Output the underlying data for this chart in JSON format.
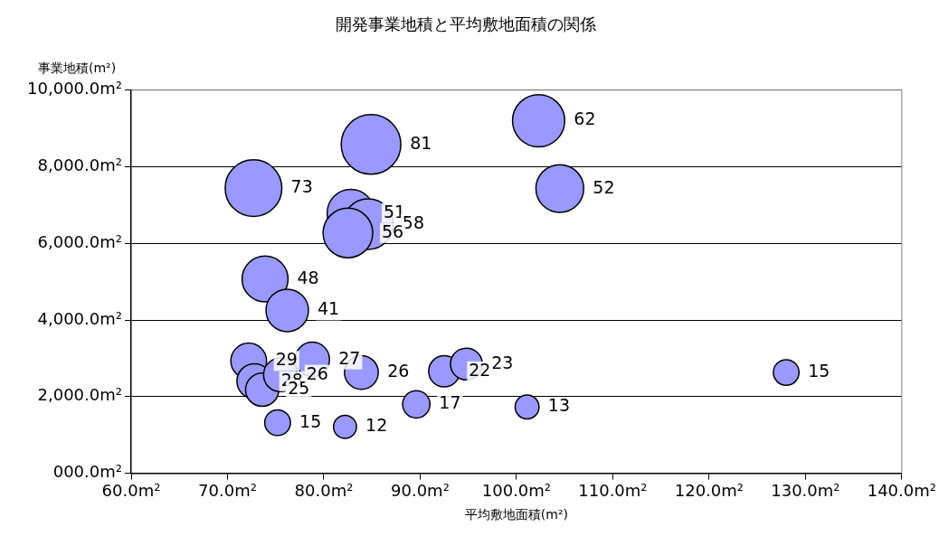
{
  "chart_data": {
    "type": "bubble",
    "title": "開発事業地積と平均敷地面積の関係",
    "xlabel": "平均敷地面積(m²)",
    "ylabel": "事業地積(m²)",
    "x": [
      102.3,
      84.9,
      104.5,
      72.7,
      82.8,
      84.6,
      82.5,
      73.9,
      76.2,
      72.2,
      72.8,
      73.6,
      75.5,
      78.8,
      83.9,
      75.2,
      82.2,
      89.6,
      101.1,
      92.5,
      94.8,
      128.0
    ],
    "values": [
      9200,
      8580,
      7430,
      7440,
      6790,
      6500,
      6270,
      5070,
      4250,
      2930,
      2400,
      2180,
      2570,
      2970,
      2630,
      1320,
      1210,
      1800,
      1730,
      2660,
      2850,
      2630
    ],
    "sizes": [
      62,
      81,
      52,
      73,
      51,
      58,
      56,
      48,
      41,
      29,
      28,
      25,
      26,
      27,
      26,
      15,
      12,
      17,
      13,
      22,
      23,
      15
    ],
    "value_labels": [
      "62",
      "81",
      "52",
      "73",
      "51",
      "58",
      "56",
      "48",
      "41",
      "29",
      "28",
      "25",
      "26",
      "27",
      "26",
      "15",
      "12",
      "17",
      "13",
      "22",
      "23",
      "15"
    ],
    "color": "#9999ff",
    "xlim": [
      60,
      140
    ],
    "xticks": [
      {
        "value": 60,
        "label": "60.0m²"
      },
      {
        "value": 70,
        "label": "70.0m²"
      },
      {
        "value": 80,
        "label": "80.0m²"
      },
      {
        "value": 90,
        "label": "90.0m²"
      },
      {
        "value": 100,
        "label": "100.0m²"
      },
      {
        "value": 110,
        "label": "110.0m²"
      },
      {
        "value": 120,
        "label": "120.0m²"
      },
      {
        "value": 130,
        "label": "130.0m²"
      },
      {
        "value": 140,
        "label": "140.0m²"
      }
    ],
    "ylim": [
      0,
      10000
    ],
    "yticks": [
      {
        "value": 0,
        "label": "000.0m²"
      },
      {
        "value": 2000,
        "label": "2,000.0m²"
      },
      {
        "value": 4000,
        "label": "4,000.0m²"
      },
      {
        "value": 6000,
        "label": "6,000.0m²"
      },
      {
        "value": 8000,
        "label": "8,000.0m²"
      },
      {
        "value": 10000,
        "label": "10,000.0m²"
      }
    ],
    "grid": "y",
    "legend": false
  }
}
